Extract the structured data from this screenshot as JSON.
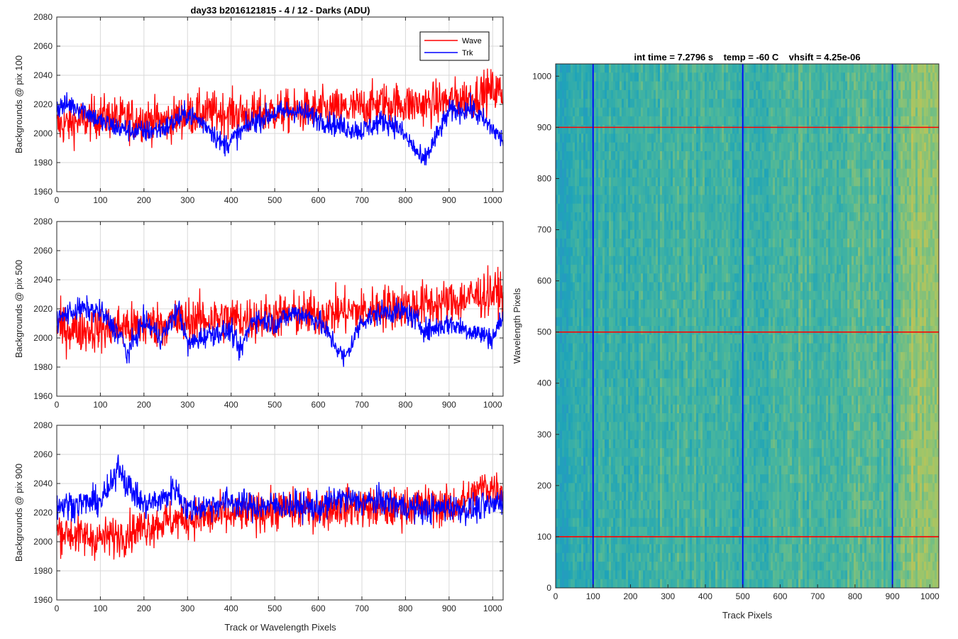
{
  "figure": {
    "title": "day33 b2016121815 - 4 / 12 - Darks (ADU)",
    "legend": [
      "Wave",
      "Trk"
    ],
    "colors": {
      "wave": "#ff0000",
      "trk": "#0000ff",
      "grid": "#d9d9d9",
      "axis": "#262626"
    }
  },
  "chart_data": [
    {
      "type": "line",
      "ylabel": "Backgrounds @ pix 100",
      "xlabel": "",
      "xlim": [
        0,
        1024
      ],
      "ylim": [
        1960,
        2080
      ],
      "xticks": [
        0,
        100,
        200,
        300,
        400,
        500,
        600,
        700,
        800,
        900,
        1000
      ],
      "yticks": [
        1960,
        1980,
        2000,
        2020,
        2040,
        2060,
        2080
      ],
      "grid": true,
      "legend_position": "top-right",
      "series": [
        {
          "name": "Wave",
          "color": "#ff0000",
          "x": [
            0,
            50,
            100,
            150,
            200,
            250,
            300,
            350,
            400,
            450,
            500,
            550,
            600,
            650,
            700,
            750,
            800,
            850,
            900,
            950,
            1000,
            1024
          ],
          "y": [
            2005,
            2008,
            2012,
            2010,
            2010,
            2008,
            2013,
            2014,
            2014,
            2013,
            2015,
            2015,
            2016,
            2016,
            2018,
            2021,
            2020,
            2020,
            2022,
            2025,
            2030,
            2028
          ],
          "noise": 7.5,
          "min": 1976,
          "max": 2064
        },
        {
          "name": "Trk",
          "color": "#0000ff",
          "x": [
            0,
            30,
            60,
            100,
            150,
            200,
            250,
            300,
            350,
            380,
            400,
            450,
            500,
            550,
            600,
            650,
            700,
            750,
            780,
            820,
            840,
            870,
            900,
            950,
            1000,
            1024
          ],
          "y": [
            2018,
            2020,
            2017,
            2008,
            2003,
            2001,
            2004,
            2014,
            2004,
            1992,
            1995,
            2008,
            2014,
            2016,
            2010,
            2005,
            2002,
            2009,
            2005,
            1990,
            1980,
            1997,
            2015,
            2017,
            2003,
            1995
          ],
          "noise": 4,
          "min": 1968,
          "max": 2037
        }
      ]
    },
    {
      "type": "line",
      "ylabel": "Backgrounds @ pix 500",
      "xlabel": "",
      "xlim": [
        0,
        1024
      ],
      "ylim": [
        1960,
        2080
      ],
      "xticks": [
        0,
        100,
        200,
        300,
        400,
        500,
        600,
        700,
        800,
        900,
        1000
      ],
      "yticks": [
        1960,
        1980,
        2000,
        2020,
        2040,
        2060,
        2080
      ],
      "grid": true,
      "series": [
        {
          "name": "Wave",
          "color": "#ff0000",
          "x": [
            0,
            50,
            100,
            150,
            200,
            250,
            300,
            350,
            400,
            450,
            500,
            550,
            600,
            650,
            700,
            750,
            800,
            850,
            900,
            950,
            1000,
            1024
          ],
          "y": [
            2007,
            2006,
            2006,
            2008,
            2008,
            2010,
            2012,
            2013,
            2013,
            2013,
            2015,
            2016,
            2016,
            2018,
            2018,
            2021,
            2022,
            2023,
            2024,
            2028,
            2031,
            2030
          ],
          "noise": 8,
          "min": 1975,
          "max": 2068
        },
        {
          "name": "Trk",
          "color": "#0000ff",
          "x": [
            0,
            30,
            60,
            100,
            150,
            160,
            200,
            240,
            280,
            300,
            350,
            400,
            420,
            450,
            500,
            550,
            600,
            640,
            660,
            700,
            750,
            800,
            850,
            900,
            950,
            1000,
            1024
          ],
          "y": [
            2012,
            2018,
            2020,
            2018,
            2000,
            1988,
            2012,
            2000,
            2020,
            1995,
            2003,
            2005,
            1990,
            2014,
            2010,
            2018,
            2012,
            1995,
            1985,
            2012,
            2018,
            2018,
            2005,
            2010,
            2005,
            2000,
            2015
          ],
          "noise": 4,
          "min": 1973,
          "max": 2035
        }
      ]
    },
    {
      "type": "line",
      "ylabel": "Backgrounds @ pix 900",
      "xlabel": "Track or Wavelength Pixels",
      "xlim": [
        0,
        1024
      ],
      "ylim": [
        1960,
        2080
      ],
      "xticks": [
        0,
        100,
        200,
        300,
        400,
        500,
        600,
        700,
        800,
        900,
        1000
      ],
      "yticks": [
        1960,
        1980,
        2000,
        2020,
        2040,
        2060,
        2080
      ],
      "grid": true,
      "series": [
        {
          "name": "Wave",
          "color": "#ff0000",
          "x": [
            0,
            50,
            100,
            150,
            200,
            250,
            300,
            350,
            400,
            450,
            500,
            550,
            600,
            650,
            700,
            750,
            800,
            850,
            900,
            950,
            980,
            1024
          ],
          "y": [
            2008,
            2004,
            2002,
            2005,
            2010,
            2014,
            2016,
            2017,
            2018,
            2020,
            2022,
            2022,
            2022,
            2024,
            2024,
            2022,
            2024,
            2025,
            2024,
            2030,
            2038,
            2036
          ],
          "noise": 7,
          "min": 1975,
          "max": 2058
        },
        {
          "name": "Trk",
          "color": "#0000ff",
          "x": [
            0,
            50,
            100,
            130,
            140,
            160,
            200,
            250,
            270,
            300,
            350,
            400,
            450,
            500,
            550,
            600,
            650,
            700,
            750,
            800,
            850,
            900,
            950,
            1000,
            1024
          ],
          "y": [
            2025,
            2026,
            2028,
            2040,
            2055,
            2040,
            2025,
            2030,
            2038,
            2022,
            2025,
            2028,
            2024,
            2025,
            2025,
            2023,
            2030,
            2027,
            2028,
            2024,
            2022,
            2024,
            2022,
            2025,
            2030
          ],
          "noise": 5,
          "min": 2000,
          "max": 2064
        }
      ]
    },
    {
      "type": "heatmap",
      "title": "int time = 7.2796 s    temp = -60 C    vhsift = 4.25e-06",
      "xlabel": "Track Pixels",
      "ylabel": "Wavelength Pixels",
      "xlim": [
        0,
        1024
      ],
      "ylim": [
        0,
        1024
      ],
      "xticks": [
        0,
        100,
        200,
        300,
        400,
        500,
        600,
        700,
        800,
        900,
        1000
      ],
      "yticks": [
        0,
        100,
        200,
        300,
        400,
        500,
        600,
        700,
        800,
        900,
        1000
      ],
      "colormap": [
        "#2f8ecb",
        "#1fa4b8",
        "#4bb79b",
        "#9dc56a",
        "#d2c24a"
      ],
      "column_trend": {
        "x": [
          0,
          150,
          300,
          500,
          700,
          900,
          940,
          1024
        ],
        "v": [
          0.3,
          0.38,
          0.45,
          0.42,
          0.48,
          0.52,
          0.72,
          0.78
        ]
      },
      "vertical_markers": [
        100,
        500,
        900
      ],
      "horizontal_markers": [
        100,
        500,
        900
      ],
      "marker_colors": {
        "vertical": "#0000ff",
        "horizontal": "#ff0000"
      }
    }
  ]
}
